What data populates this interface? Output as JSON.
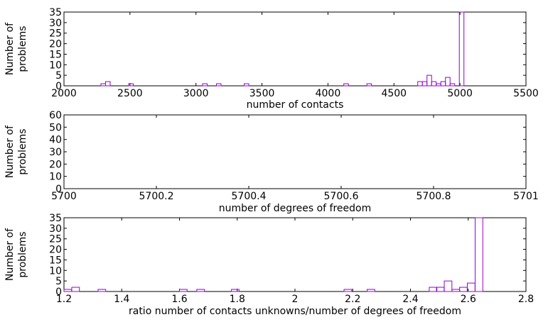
{
  "chart_data": [
    {
      "type": "bar",
      "title": "",
      "xlabel": "number of contacts",
      "ylabel": [
        "Number of",
        "problems"
      ],
      "xlim": [
        2000,
        5500
      ],
      "ylim": [
        0,
        35
      ],
      "xticks": [
        2000,
        2500,
        3000,
        3500,
        4000,
        4500,
        5000,
        5500
      ],
      "xtick_labels": [
        "2000",
        "2500",
        "3000",
        "3500",
        "4000",
        "4500",
        "5000",
        "5500"
      ],
      "yticks": [
        0,
        5,
        10,
        15,
        20,
        25,
        30,
        35
      ],
      "ytick_labels": [
        "0",
        "5",
        "10",
        "15",
        "20",
        "25",
        "30",
        "35"
      ],
      "grid": false,
      "bin_width": 35,
      "series": [
        {
          "name": "number of contacts",
          "bins": [
            {
              "x": 2280,
              "y": 1
            },
            {
              "x": 2315,
              "y": 2
            },
            {
              "x": 2490,
              "y": 1
            },
            {
              "x": 3050,
              "y": 1
            },
            {
              "x": 3155,
              "y": 1
            },
            {
              "x": 3365,
              "y": 1
            },
            {
              "x": 4120,
              "y": 1
            },
            {
              "x": 4295,
              "y": 1
            },
            {
              "x": 4680,
              "y": 2
            },
            {
              "x": 4715,
              "y": 2
            },
            {
              "x": 4750,
              "y": 5
            },
            {
              "x": 4785,
              "y": 2
            },
            {
              "x": 4820,
              "y": 1
            },
            {
              "x": 4855,
              "y": 2
            },
            {
              "x": 4890,
              "y": 4
            },
            {
              "x": 4925,
              "y": 1
            },
            {
              "x": 4995,
              "y": 35
            }
          ]
        }
      ]
    },
    {
      "type": "bar",
      "title": "",
      "xlabel": "number of degrees of freedom",
      "ylabel": [
        "Number of",
        "problems"
      ],
      "xlim": [
        5700,
        5701
      ],
      "ylim": [
        0,
        60
      ],
      "xticks": [
        5700,
        5700.2,
        5700.4,
        5700.6,
        5700.8,
        5701
      ],
      "xtick_labels": [
        "5700",
        "5700.2",
        "5700.4",
        "5700.6",
        "5700.8",
        "5701"
      ],
      "yticks": [
        0,
        10,
        20,
        30,
        40,
        50,
        60
      ],
      "ytick_labels": [
        "0",
        "10",
        "20",
        "30",
        "40",
        "50",
        "60"
      ],
      "grid": false,
      "bin_width": 0.01,
      "series": [
        {
          "name": "number of degrees of freedom",
          "bins": []
        }
      ]
    },
    {
      "type": "bar",
      "title": "",
      "xlabel": "ratio number of contacts unknowns/number of degrees of freedom",
      "ylabel": [
        "Number of",
        "problems"
      ],
      "xlim": [
        1.2,
        2.8
      ],
      "ylim": [
        0,
        35
      ],
      "xticks": [
        1.2,
        1.4,
        1.6,
        1.8,
        2,
        2.2,
        2.4,
        2.6,
        2.8
      ],
      "xtick_labels": [
        "1.2",
        "1.4",
        "1.6",
        "1.8",
        "2",
        "2.2",
        "2.4",
        "2.6",
        "2.8"
      ],
      "yticks": [
        0,
        5,
        10,
        15,
        20,
        25,
        30,
        35
      ],
      "ytick_labels": [
        "0",
        "5",
        "10",
        "15",
        "20",
        "25",
        "30",
        "35"
      ],
      "grid": false,
      "bin_width": 0.0265,
      "series": [
        {
          "name": "ratio",
          "bins": [
            {
              "x": 1.2,
              "y": 1
            },
            {
              "x": 1.227,
              "y": 2
            },
            {
              "x": 1.318,
              "y": 1
            },
            {
              "x": 1.6,
              "y": 1
            },
            {
              "x": 1.66,
              "y": 1
            },
            {
              "x": 1.78,
              "y": 1
            },
            {
              "x": 2.17,
              "y": 1
            },
            {
              "x": 2.25,
              "y": 1
            },
            {
              "x": 2.465,
              "y": 2
            },
            {
              "x": 2.49,
              "y": 2
            },
            {
              "x": 2.517,
              "y": 5
            },
            {
              "x": 2.544,
              "y": 1
            },
            {
              "x": 2.57,
              "y": 2
            },
            {
              "x": 2.597,
              "y": 4
            },
            {
              "x": 2.624,
              "y": 35
            }
          ]
        }
      ]
    }
  ],
  "colors": {
    "bars": "#9400d3",
    "axes": "#000000",
    "background": "#ffffff"
  }
}
